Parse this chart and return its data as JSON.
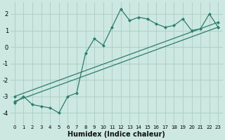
{
  "xlabel": "Humidex (Indice chaleur)",
  "ylabel": "",
  "bg_color": "#cce8e0",
  "grid_color": "#aaccC4",
  "line_color": "#2d7d6e",
  "xlim": [
    -0.5,
    23.5
  ],
  "ylim": [
    -4.7,
    2.7
  ],
  "yticks": [
    -4,
    -3,
    -2,
    -1,
    0,
    1,
    2
  ],
  "xticks": [
    0,
    1,
    2,
    3,
    4,
    5,
    6,
    7,
    8,
    9,
    10,
    11,
    12,
    13,
    14,
    15,
    16,
    17,
    18,
    19,
    20,
    21,
    22,
    23
  ],
  "series1_x": [
    0,
    1,
    2,
    3,
    4,
    5,
    6,
    7,
    8,
    9,
    10,
    11,
    12,
    13,
    14,
    15,
    16,
    17,
    18,
    19,
    20,
    21,
    22,
    23
  ],
  "series1_y": [
    -3.4,
    -3.0,
    -3.5,
    -3.6,
    -3.7,
    -4.0,
    -3.0,
    -2.8,
    -0.4,
    0.5,
    0.1,
    1.2,
    2.3,
    1.6,
    1.8,
    1.7,
    1.4,
    1.2,
    1.3,
    1.7,
    1.0,
    1.1,
    2.0,
    1.2
  ],
  "series2_x": [
    0,
    23
  ],
  "series2_y": [
    -3.3,
    1.2
  ],
  "series3_x": [
    0,
    23
  ],
  "series3_y": [
    -3.0,
    1.5
  ],
  "marker": "D",
  "markersize": 2.5,
  "linewidth": 0.9
}
